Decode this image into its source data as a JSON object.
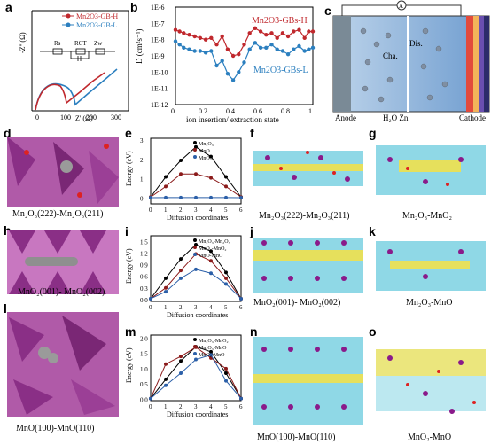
{
  "panels": {
    "a": {
      "letter": "a",
      "legend": [
        "Mn2O3-GB-H",
        "Mn2O3-GB-L"
      ],
      "ylabel": "-Z'' (Ω)",
      "xlabel": "Z' (Ω)",
      "xticks": [
        "0",
        "100",
        "200",
        "300"
      ],
      "circuit": [
        "Rs",
        "RCT",
        "Zw"
      ],
      "colors": [
        "#c0282d",
        "#2b7fbf"
      ]
    },
    "b": {
      "letter": "b",
      "ylabel": "D (cm²s⁻¹)",
      "xlabel": "ion insertion/ extraction state",
      "yticks": [
        "1E-6",
        "1E-7",
        "1E-8",
        "1E-9",
        "1E-10",
        "1E-11",
        "1E-12"
      ],
      "xticks": [
        "0",
        "0.2",
        "0.4",
        "0.6",
        "0.8",
        "1"
      ],
      "label_h": "Mn2O3-GBs-H",
      "label_l": "Mn2O3-GBs-L"
    },
    "c": {
      "letter": "c",
      "anode": "Anode",
      "cathode": "Cathode",
      "legend": "H₂O   Zn",
      "cha": "Cha.",
      "dis": "Dis.",
      "meter": "A"
    },
    "d": {
      "letter": "d",
      "caption": "Mn₂O₃(222)-Mn₂O₃(211)"
    },
    "e": {
      "letter": "e",
      "xlabel": "Diffusion coordinates",
      "ylabel": "Energy (eV)",
      "legend": [
        "Mn₂O₃",
        "MnO",
        "MnO₂"
      ],
      "yticks": [
        "0",
        "1",
        "2",
        "3"
      ],
      "xticks": [
        "0",
        "1",
        "2",
        "3",
        "4",
        "5",
        "6"
      ]
    },
    "f": {
      "letter": "f",
      "caption": "Mn₂O₃(222)-Mn₂O₃(211)"
    },
    "g": {
      "letter": "g",
      "caption": "Mn₂O₃-MnO₂"
    },
    "h": {
      "letter": "h",
      "caption": "MnO₂(001)- MnO₂(002)"
    },
    "i": {
      "letter": "i",
      "xlabel": "Diffusion coordinates",
      "ylabel": "Energy (eV)",
      "legend": [
        "Mn₂O₃-Mn₂O₃",
        "MnO₂-MnO₂",
        "MnO-MnO"
      ],
      "yticks": [
        "0.0",
        "0.3",
        "0.6",
        "0.9",
        "1.2",
        "1.5"
      ],
      "xticks": [
        "0",
        "1",
        "2",
        "3",
        "4",
        "5",
        "6"
      ]
    },
    "j": {
      "letter": "j",
      "caption": "MnO₂(001)- MnO₂(002)"
    },
    "k": {
      "letter": "k",
      "caption": "Mn₂O₃-MnO"
    },
    "l": {
      "letter": "l",
      "caption": "MnO(100)-MnO(110)"
    },
    "m": {
      "letter": "m",
      "xlabel": "Diffusion coordinates",
      "ylabel": "Energy (eV)",
      "legend": [
        "Mn₂O₃-MnO₂",
        "Mn₂O₃-MnO",
        "MnO₂-MnO"
      ],
      "yticks": [
        "0.0",
        "0.5",
        "1.0",
        "1.5",
        "2.0"
      ],
      "xticks": [
        "0",
        "1",
        "2",
        "3",
        "4",
        "5",
        "6"
      ]
    },
    "n": {
      "letter": "n",
      "caption": "MnO(100)-MnO(110)"
    },
    "o": {
      "letter": "o",
      "caption": "MnO₂-MnO"
    }
  },
  "chart_data": [
    {
      "id": "e",
      "type": "line",
      "x": [
        0,
        1,
        2,
        3,
        4,
        5,
        6
      ],
      "ylim": [
        -0.3,
        3.1
      ],
      "series": [
        {
          "name": "Mn₂O₃",
          "values": [
            0.05,
            1.1,
            1.95,
            2.65,
            2.15,
            1.1,
            0.05
          ],
          "color": "#000000"
        },
        {
          "name": "MnO",
          "values": [
            0.05,
            0.6,
            1.25,
            1.25,
            1.05,
            0.6,
            0.05
          ],
          "color": "#8b1a1a"
        },
        {
          "name": "MnO₂",
          "values": [
            0.02,
            0.03,
            0.03,
            0.03,
            0.03,
            0.03,
            0.02
          ],
          "color": "#2b5fa8"
        }
      ]
    },
    {
      "id": "i",
      "type": "line",
      "x": [
        0,
        1,
        2,
        3,
        4,
        5,
        6
      ],
      "ylim": [
        -0.05,
        1.65
      ],
      "series": [
        {
          "name": "Mn₂O₃-Mn₂O₃",
          "values": [
            0.02,
            0.55,
            1.05,
            1.42,
            1.25,
            0.7,
            0.02
          ],
          "color": "#000000"
        },
        {
          "name": "MnO₂-MnO₂",
          "values": [
            0.02,
            0.3,
            0.75,
            1.18,
            1.0,
            0.55,
            0.02
          ],
          "color": "#8b1a1a"
        },
        {
          "name": "MnO-MnO",
          "values": [
            0.02,
            0.2,
            0.55,
            0.78,
            0.68,
            0.4,
            0.02
          ],
          "color": "#2b5fa8"
        }
      ]
    },
    {
      "id": "m",
      "type": "line",
      "x": [
        0,
        1,
        2,
        3,
        4,
        5,
        6
      ],
      "ylim": [
        -0.05,
        2.1
      ],
      "series": [
        {
          "name": "Mn₂O₃-MnO₂",
          "values": [
            0.02,
            0.65,
            1.25,
            1.72,
            1.55,
            0.85,
            0.02
          ],
          "color": "#000000"
        },
        {
          "name": "Mn₂O₃-MnO",
          "values": [
            0.02,
            1.15,
            1.4,
            1.7,
            1.35,
            1.0,
            0.02
          ],
          "color": "#8b1a1a"
        },
        {
          "name": "MnO₂-MnO",
          "values": [
            0.02,
            0.45,
            0.85,
            1.3,
            1.45,
            0.6,
            0.02
          ],
          "color": "#2b5fa8"
        }
      ]
    },
    {
      "id": "b",
      "type": "line",
      "xlim": [
        0,
        1
      ],
      "ylabel_log": true,
      "series": [
        {
          "name": "Mn2O3-GBs-H",
          "color": "#c0282d",
          "x": [
            0,
            0.03,
            0.06,
            0.1,
            0.14,
            0.18,
            0.22,
            0.26,
            0.3,
            0.34,
            0.38,
            0.42,
            0.46,
            0.5,
            0.54,
            0.58,
            0.62,
            0.66,
            0.7,
            0.74,
            0.78,
            0.82,
            0.86,
            0.9,
            0.94,
            0.97,
            1.0
          ],
          "y": [
            -7.4,
            -7.5,
            -7.6,
            -7.7,
            -7.8,
            -7.9,
            -8.0,
            -7.9,
            -8.3,
            -7.8,
            -8.6,
            -9.0,
            -8.9,
            -8.3,
            -7.6,
            -7.3,
            -7.5,
            -7.7,
            -7.6,
            -7.9,
            -7.6,
            -7.8,
            -7.5,
            -7.4,
            -7.9,
            -7.5,
            -7.5
          ]
        },
        {
          "name": "Mn2O3-GBs-L",
          "color": "#2b7fbf",
          "x": [
            0,
            0.03,
            0.06,
            0.1,
            0.14,
            0.18,
            0.22,
            0.26,
            0.3,
            0.34,
            0.38,
            0.42,
            0.46,
            0.5,
            0.54,
            0.58,
            0.62,
            0.66,
            0.7,
            0.74,
            0.78,
            0.82,
            0.86,
            0.9,
            0.94,
            0.97,
            1.0
          ],
          "y": [
            -8.1,
            -8.3,
            -8.5,
            -8.6,
            -8.7,
            -8.7,
            -8.8,
            -8.7,
            -9.6,
            -9.3,
            -10.1,
            -10.5,
            -10.0,
            -9.4,
            -8.6,
            -8.2,
            -8.5,
            -8.5,
            -8.3,
            -8.6,
            -8.7,
            -8.9,
            -8.6,
            -8.4,
            -8.7,
            -8.6,
            -8.5
          ]
        }
      ]
    }
  ]
}
